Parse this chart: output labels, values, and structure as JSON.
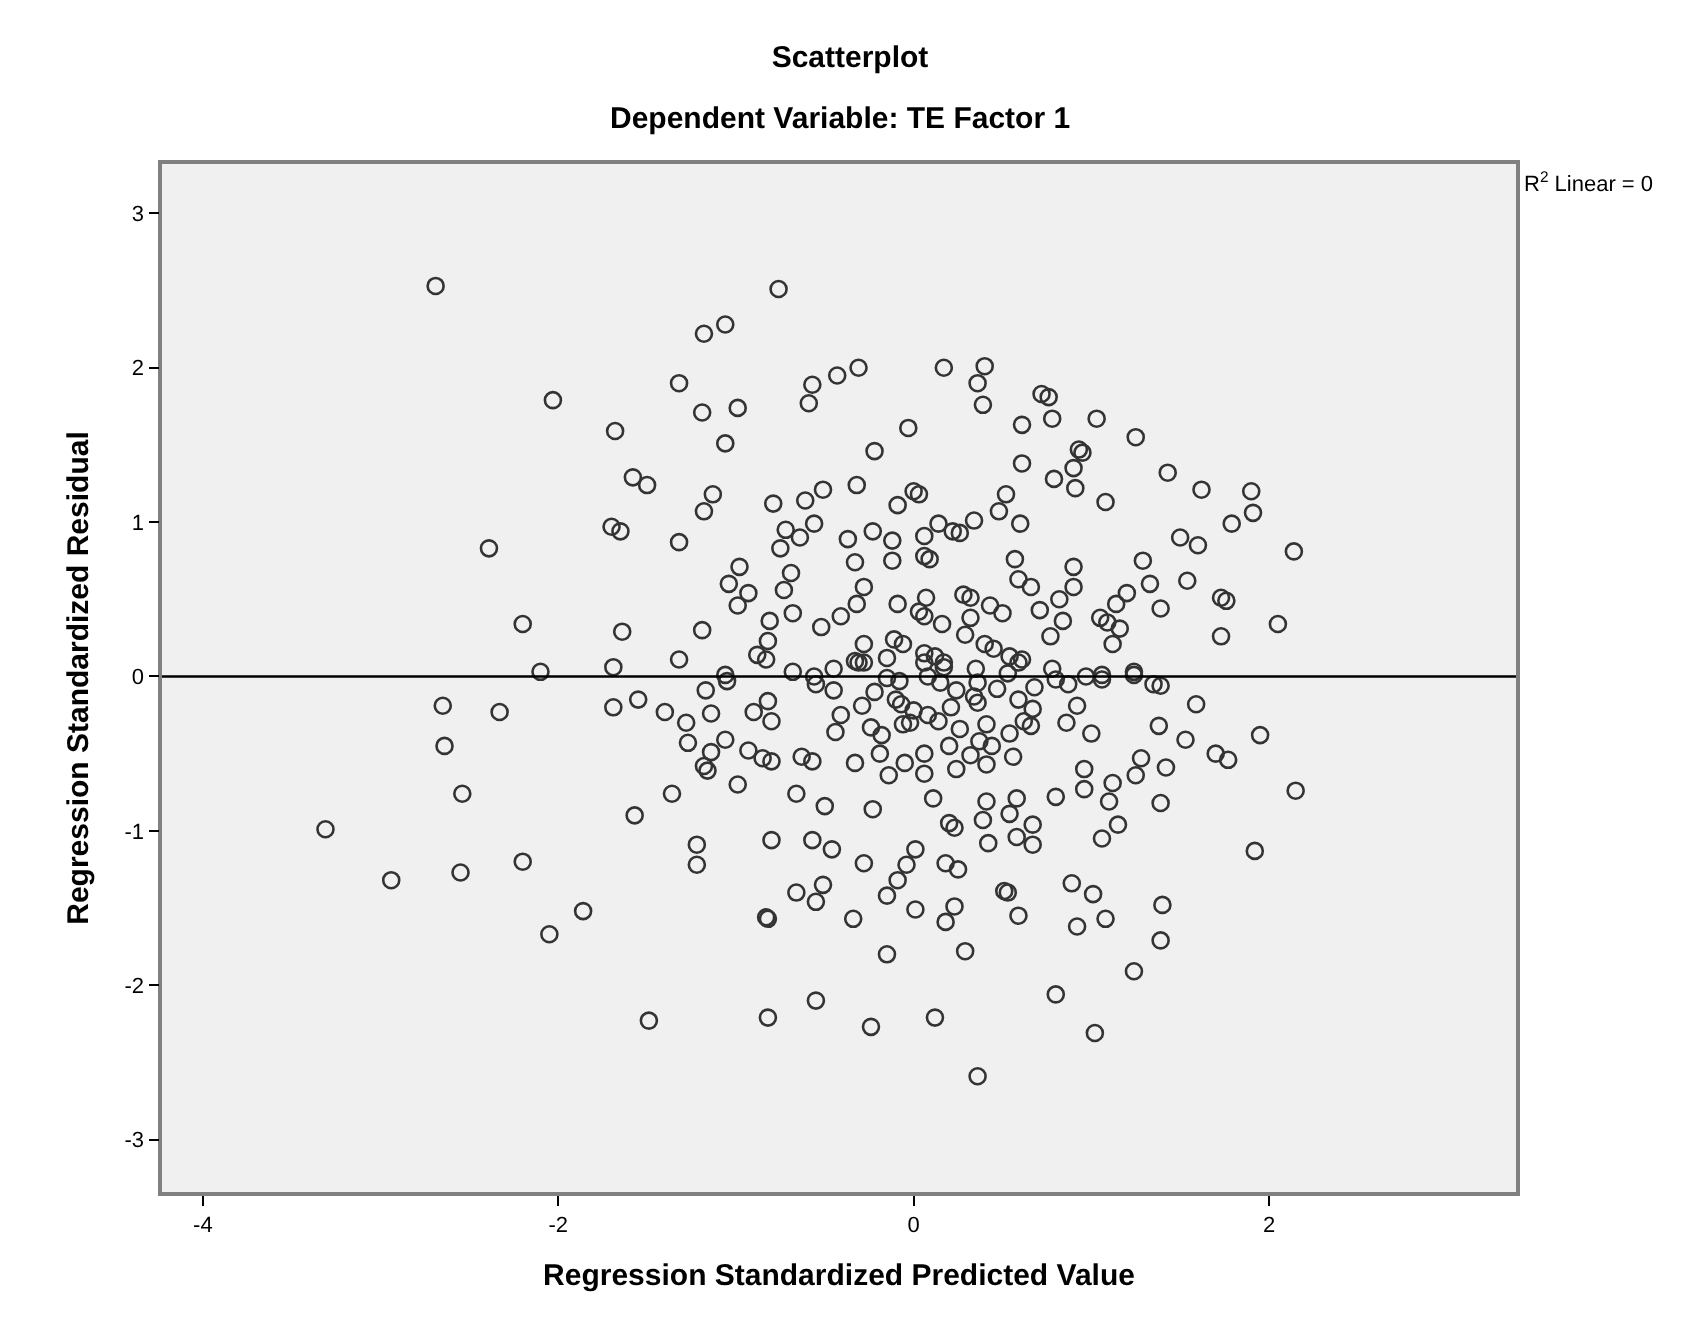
{
  "chart_data": {
    "type": "scatter",
    "title": "Scatterplot",
    "subtitle": "Dependent Variable: TE Factor 1",
    "xlabel": "Regression Standardized Predicted Value",
    "ylabel": "Regression Standardized Residual",
    "annotations": [
      "R$^{2}$ Linear = 0"
    ],
    "xlim": [
      -4.23,
      3.39
    ],
    "ylim": [
      -3.34,
      3.32
    ],
    "xticks": [
      -4,
      -2,
      0,
      2
    ],
    "yticks": [
      -3,
      -2,
      -1,
      0,
      1,
      2,
      3
    ],
    "series": [
      {
        "marker": "circle",
        "color": "#333333",
        "x": [
          -2.69,
          -2.03,
          -1.68,
          -1.58,
          -1.5,
          -1.7,
          -1.65,
          -2.39,
          -2.2,
          -1.64,
          -2.1,
          -1.69,
          -1.32,
          -1.32,
          -1.32,
          -2.65,
          -2.33,
          -2.64,
          -1.69,
          -1.55,
          -1.4,
          -2.54,
          -1.36,
          -1.57,
          -3.31,
          -2.94,
          -2.55,
          -2.2,
          -1.86,
          -2.05,
          -1.49,
          -0.76,
          -1.18,
          -1.06,
          -1.19,
          -0.99,
          -1.06,
          -0.57,
          -0.59,
          -0.43,
          -0.31,
          0.17,
          0.4,
          0.36,
          0.39,
          0.72,
          0.76,
          0.78,
          0.61,
          1.03,
          1.25,
          -0.03,
          -0.22,
          0.61,
          0.93,
          0.95,
          0.9,
          0.79,
          0.91,
          1.43,
          1.08,
          1.5,
          -1.13,
          -1.18,
          -0.79,
          -0.61,
          -0.51,
          -0.32,
          -0.56,
          -0.72,
          -0.64,
          -0.75,
          -0.09,
          0.0,
          0.03,
          0.52,
          0.48,
          0.34,
          0.6,
          0.14,
          0.22,
          0.26,
          0.06,
          -0.23,
          -0.37,
          -0.12,
          -0.12,
          -0.33,
          0.06,
          0.09,
          0.57,
          0.9,
          1.29,
          1.33,
          1.39,
          0.59,
          0.66,
          0.9,
          1.2,
          1.14,
          0.82,
          0.71,
          0.84,
          1.05,
          1.09,
          1.16,
          1.12,
          0.77,
          -0.98,
          -1.04,
          -0.93,
          -0.99,
          -0.69,
          -0.73,
          -0.68,
          -0.81,
          -0.82,
          -0.88,
          -0.83,
          -1.19,
          -0.52,
          -0.41,
          -0.32,
          -0.28,
          -0.09,
          0.07,
          0.03,
          0.06,
          0.16,
          0.28,
          0.32,
          0.43,
          0.5,
          0.32,
          0.29,
          0.4,
          0.45,
          0.54,
          0.61,
          -0.28,
          -0.33,
          -0.15,
          -0.11,
          -0.06,
          0.06,
          0.12,
          0.17,
          1.24,
          1.06,
          1.62,
          1.9,
          1.91,
          1.79,
          1.6,
          2.14,
          1.54,
          1.73,
          1.76,
          1.73,
          2.05,
          1.59,
          1.53,
          1.7,
          1.77,
          1.95,
          1.42,
          1.39,
          2.15,
          1.92,
          1.4,
          1.39,
          1.39,
          -1.17,
          -1.05,
          -1.28,
          -1.27,
          -1.14,
          -1.14,
          -1.06,
          -1.18,
          -1.16,
          -0.99,
          -0.93,
          -0.85,
          -0.8,
          -0.9,
          -0.82,
          -0.8,
          -0.68,
          -0.55,
          -0.45,
          -0.44,
          -0.41,
          -0.63,
          -0.57,
          -0.33,
          -0.66,
          -0.5,
          -0.23,
          -0.29,
          -0.24,
          -0.22,
          -0.18,
          -0.19,
          -0.14,
          -0.15,
          -0.1,
          -0.07,
          -0.06,
          -0.02,
          0.0,
          -0.05,
          0.06,
          0.06,
          0.08,
          0.14,
          0.11,
          0.06,
          0.08,
          0.17,
          0.15,
          0.21,
          0.24,
          0.26,
          0.2,
          0.24,
          0.34,
          0.36,
          0.36,
          0.32,
          0.41,
          0.37,
          0.41,
          0.47,
          0.44,
          0.56,
          0.59,
          0.54,
          0.62,
          0.66,
          0.67,
          0.68,
          0.8,
          0.87,
          0.92,
          0.86,
          1.0,
          1.06,
          1.24,
          1.35,
          1.38,
          1.28,
          1.25,
          1.12,
          0.96,
          0.96,
          1.1,
          0.8,
          0.58,
          0.41,
          0.54,
          0.39,
          0.42,
          0.67,
          0.58,
          0.67,
          1.06,
          1.15,
          0.2,
          0.23,
          -1.22,
          -1.22,
          -0.8,
          -0.57,
          -0.46,
          -0.28,
          0.01,
          -0.04,
          -0.09,
          -0.15,
          0.18,
          0.25,
          -0.66,
          -0.55,
          -0.51,
          -0.83,
          -0.82,
          -0.34,
          0.01,
          0.23,
          0.18,
          0.51,
          0.53,
          0.59,
          0.89,
          1.01,
          0.92,
          1.08,
          1.24,
          -0.15,
          0.29,
          0.8,
          1.02,
          -0.82,
          -0.55,
          -0.24,
          0.12,
          0.36,
          -0.31,
          -0.28,
          -0.08,
          0.59,
          0.53,
          0.35,
          0.78,
          0.97,
          -0.45,
          -1.06,
          -0.56
        ],
        "values": [
          2.53,
          1.79,
          1.59,
          1.29,
          1.24,
          0.97,
          0.94,
          0.83,
          0.34,
          0.29,
          0.03,
          0.06,
          1.9,
          0.87,
          0.11,
          -0.19,
          -0.23,
          -0.45,
          -0.2,
          -0.15,
          -0.23,
          -0.76,
          -0.76,
          -0.9,
          -0.99,
          -1.32,
          -1.27,
          -1.2,
          -1.52,
          -1.67,
          -2.23,
          2.51,
          2.22,
          2.28,
          1.71,
          1.74,
          1.51,
          1.89,
          1.77,
          1.95,
          2.0,
          2.0,
          2.01,
          1.9,
          1.76,
          1.83,
          1.81,
          1.67,
          1.63,
          1.67,
          1.55,
          1.61,
          1.46,
          1.38,
          1.47,
          1.45,
          1.35,
          1.28,
          1.22,
          1.32,
          1.13,
          0.9,
          1.18,
          1.07,
          1.12,
          1.14,
          1.21,
          1.24,
          0.99,
          0.95,
          0.9,
          0.83,
          1.11,
          1.2,
          1.18,
          1.18,
          1.07,
          1.01,
          0.99,
          0.99,
          0.94,
          0.93,
          0.91,
          0.94,
          0.89,
          0.88,
          0.75,
          0.74,
          0.78,
          0.76,
          0.76,
          0.71,
          0.75,
          0.6,
          0.44,
          0.63,
          0.58,
          0.58,
          0.54,
          0.47,
          0.5,
          0.43,
          0.36,
          0.38,
          0.35,
          0.31,
          0.21,
          0.26,
          0.71,
          0.6,
          0.54,
          0.46,
          0.67,
          0.56,
          0.41,
          0.36,
          0.23,
          0.14,
          0.11,
          0.3,
          0.32,
          0.39,
          0.47,
          0.58,
          0.47,
          0.51,
          0.42,
          0.39,
          0.34,
          0.53,
          0.51,
          0.46,
          0.41,
          0.38,
          0.27,
          0.21,
          0.18,
          0.13,
          0.11,
          0.21,
          0.1,
          0.12,
          0.24,
          0.21,
          0.15,
          0.13,
          0.09,
          0.03,
          0.01,
          1.21,
          1.2,
          1.06,
          0.99,
          0.85,
          0.81,
          0.62,
          0.51,
          0.49,
          0.26,
          0.34,
          -0.18,
          -0.41,
          -0.5,
          -0.54,
          -0.38,
          -0.59,
          -0.82,
          -0.74,
          -1.13,
          -1.48,
          -1.71,
          -0.06,
          -0.09,
          -0.03,
          -0.3,
          -0.43,
          -0.24,
          -0.49,
          -0.41,
          -0.58,
          -0.61,
          -0.7,
          -0.48,
          -0.53,
          -0.55,
          -0.23,
          -0.16,
          -0.29,
          0.03,
          -0.05,
          -0.09,
          -0.36,
          -0.25,
          -0.52,
          -0.55,
          -0.56,
          -0.76,
          -0.84,
          -0.86,
          -0.19,
          -0.33,
          -0.1,
          -0.38,
          -0.5,
          -0.64,
          -0.01,
          -0.15,
          -0.18,
          -0.31,
          -0.3,
          -0.22,
          -0.56,
          -0.5,
          -0.63,
          -0.25,
          -0.29,
          -0.79,
          0.09,
          0.0,
          0.06,
          -0.04,
          -0.2,
          -0.09,
          -0.34,
          -0.45,
          -0.6,
          -0.13,
          -0.17,
          -0.04,
          -0.51,
          -0.31,
          -0.42,
          -0.57,
          -0.08,
          -0.45,
          -0.52,
          -0.15,
          -0.37,
          -0.29,
          -0.32,
          -0.21,
          -0.07,
          -0.02,
          -0.05,
          -0.19,
          -0.3,
          -0.37,
          -0.02,
          0.01,
          -0.05,
          -0.32,
          -0.53,
          -0.64,
          -0.69,
          -0.6,
          -0.73,
          -0.81,
          -0.78,
          -0.79,
          -0.81,
          -0.89,
          -0.93,
          -1.08,
          -0.96,
          -1.04,
          -1.09,
          -1.05,
          -0.96,
          -0.95,
          -0.98,
          -1.09,
          -1.22,
          -1.06,
          -1.06,
          -1.12,
          -1.21,
          -1.12,
          -1.22,
          -1.32,
          -1.42,
          -1.21,
          -1.25,
          -1.4,
          -1.46,
          -1.35,
          -1.56,
          -1.57,
          -1.57,
          -1.51,
          -1.49,
          -1.59,
          -1.39,
          -1.4,
          -1.55,
          -1.34,
          -1.41,
          -1.62,
          -1.57,
          -1.91,
          -1.8,
          -1.78,
          -2.06,
          -2.31,
          -2.21,
          -2.1,
          -2.27,
          -2.21,
          -2.59,
          0.09,
          0.09,
          -0.03,
          0.09,
          0.02,
          0.05,
          0.05,
          0.0,
          0.05,
          0.01,
          0.0
        ]
      },
      {
        "type": "line",
        "color": "#000000",
        "x": [
          -4.23,
          3.39
        ],
        "values": [
          0,
          0
        ]
      }
    ]
  }
}
